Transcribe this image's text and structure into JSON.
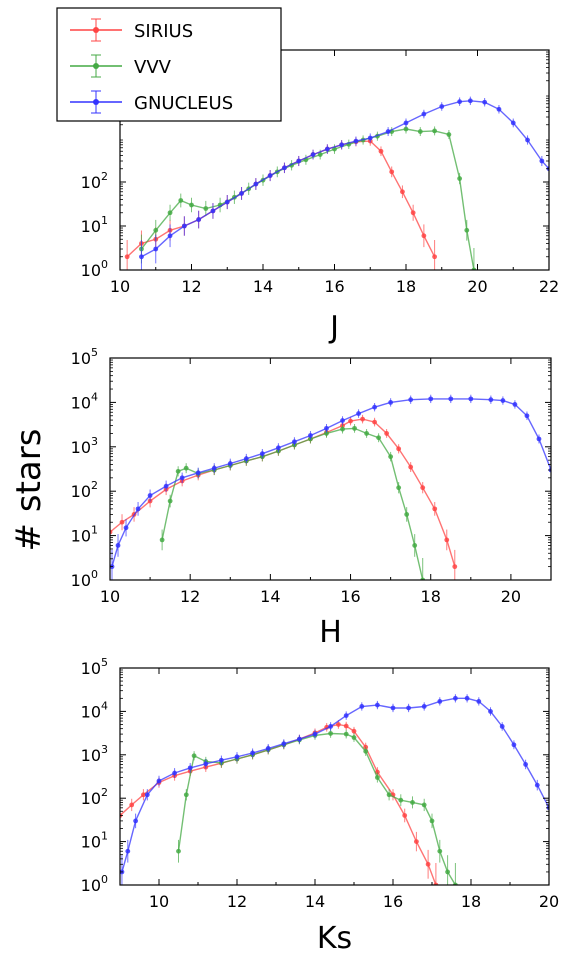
{
  "chart_data": [
    {
      "type": "line",
      "xlabel": "J",
      "xlim": [
        10,
        22
      ],
      "ylim": [
        1,
        100000
      ],
      "log_y": true,
      "x_ticks": [
        "10",
        "12",
        "14",
        "16",
        "18",
        "20",
        "22"
      ],
      "y_ticks": [
        {
          "base": "10",
          "exp": "0"
        },
        {
          "base": "10",
          "exp": "1"
        },
        {
          "base": "10",
          "exp": "2"
        }
      ],
      "legend": {
        "placement": "top-left",
        "entries": [
          "SIRIUS",
          "VVV",
          "GNUCLEUS"
        ]
      },
      "series": [
        {
          "name": "SIRIUS",
          "color": "#ff4444",
          "x": [
            10.2,
            10.6,
            11.0,
            11.4,
            11.8,
            12.2,
            12.6,
            13.0,
            13.4,
            13.8,
            14.2,
            14.6,
            15.0,
            15.4,
            15.8,
            16.2,
            16.6,
            17.0,
            17.3,
            17.6,
            17.9,
            18.2,
            18.5,
            18.8
          ],
          "y": [
            2,
            4,
            5,
            8,
            10,
            14,
            22,
            35,
            55,
            90,
            140,
            210,
            300,
            420,
            560,
            700,
            820,
            850,
            500,
            170,
            60,
            20,
            6,
            2
          ]
        },
        {
          "name": "VVV",
          "color": "#44aa44",
          "x": [
            10.6,
            11.0,
            11.4,
            11.7,
            12.0,
            12.4,
            12.8,
            13.2,
            13.6,
            14.0,
            14.4,
            14.8,
            15.2,
            15.6,
            16.0,
            16.4,
            16.8,
            17.2,
            17.6,
            18.0,
            18.4,
            18.8,
            19.2,
            19.5,
            19.7,
            19.9
          ],
          "y": [
            3,
            8,
            20,
            38,
            30,
            25,
            30,
            45,
            70,
            110,
            170,
            240,
            320,
            420,
            560,
            720,
            900,
            1100,
            1400,
            1600,
            1400,
            1450,
            1200,
            120,
            8,
            1
          ]
        },
        {
          "name": "GNUCLEUS",
          "color": "#3333ff",
          "x": [
            10.6,
            11.0,
            11.4,
            11.8,
            12.2,
            12.6,
            13.0,
            13.4,
            13.8,
            14.2,
            14.6,
            15.0,
            15.4,
            15.8,
            16.2,
            16.6,
            17.0,
            17.5,
            18.0,
            18.5,
            19.0,
            19.5,
            19.8,
            20.2,
            20.6,
            21.0,
            21.4,
            21.8,
            22.0
          ],
          "y": [
            2,
            3,
            6,
            10,
            14,
            22,
            35,
            55,
            90,
            140,
            210,
            300,
            420,
            560,
            700,
            850,
            1000,
            1400,
            2200,
            3500,
            5200,
            6700,
            7000,
            6500,
            4500,
            2200,
            900,
            300,
            200
          ]
        }
      ]
    },
    {
      "type": "line",
      "xlabel": "H",
      "xlim": [
        10,
        21
      ],
      "ylim": [
        1,
        100000
      ],
      "log_y": true,
      "x_ticks": [
        "10",
        "12",
        "14",
        "16",
        "18",
        "20"
      ],
      "y_ticks": [
        {
          "base": "10",
          "exp": "0"
        },
        {
          "base": "10",
          "exp": "1"
        },
        {
          "base": "10",
          "exp": "2"
        },
        {
          "base": "10",
          "exp": "3"
        },
        {
          "base": "10",
          "exp": "4"
        },
        {
          "base": "10",
          "exp": "5"
        }
      ],
      "series": [
        {
          "name": "SIRIUS",
          "color": "#ff4444",
          "x": [
            10.0,
            10.3,
            10.6,
            11.0,
            11.4,
            11.8,
            12.2,
            12.6,
            13.0,
            13.4,
            13.8,
            14.2,
            14.6,
            15.0,
            15.4,
            15.8,
            16.0,
            16.3,
            16.6,
            16.9,
            17.2,
            17.5,
            17.8,
            18.1,
            18.4,
            18.6
          ],
          "y": [
            12,
            20,
            30,
            60,
            110,
            170,
            230,
            300,
            380,
            480,
            600,
            800,
            1100,
            1500,
            2100,
            3000,
            3800,
            4200,
            3600,
            2000,
            900,
            350,
            120,
            40,
            8,
            2
          ]
        },
        {
          "name": "VVV",
          "color": "#44aa44",
          "x": [
            11.3,
            11.5,
            11.7,
            11.9,
            12.2,
            12.6,
            13.0,
            13.4,
            13.8,
            14.2,
            14.6,
            15.0,
            15.4,
            15.8,
            16.1,
            16.4,
            16.7,
            17.0,
            17.2,
            17.4,
            17.6,
            17.8
          ],
          "y": [
            8,
            60,
            280,
            330,
            250,
            300,
            380,
            480,
            600,
            800,
            1100,
            1500,
            2000,
            2500,
            2600,
            2000,
            1600,
            600,
            120,
            30,
            6,
            1
          ]
        },
        {
          "name": "GNUCLEUS",
          "color": "#3333ff",
          "x": [
            10.05,
            10.2,
            10.4,
            10.7,
            11.0,
            11.4,
            11.8,
            12.2,
            12.6,
            13.0,
            13.4,
            13.8,
            14.2,
            14.6,
            15.0,
            15.4,
            15.8,
            16.2,
            16.6,
            17.0,
            17.5,
            18.0,
            18.5,
            19.0,
            19.5,
            19.8,
            20.1,
            20.4,
            20.7,
            21.0
          ],
          "y": [
            2,
            6,
            15,
            40,
            80,
            130,
            200,
            260,
            330,
            420,
            540,
            700,
            950,
            1300,
            1800,
            2600,
            3900,
            5600,
            7800,
            10000,
            11500,
            12000,
            12000,
            12000,
            11500,
            11000,
            9000,
            5000,
            1500,
            300
          ]
        }
      ]
    },
    {
      "type": "line",
      "xlabel": "Ks",
      "xlim": [
        9,
        20
      ],
      "ylim": [
        1,
        100000
      ],
      "log_y": true,
      "x_ticks": [
        "10",
        "12",
        "14",
        "16",
        "18",
        "20"
      ],
      "y_ticks": [
        {
          "base": "10",
          "exp": "0"
        },
        {
          "base": "10",
          "exp": "1"
        },
        {
          "base": "10",
          "exp": "2"
        },
        {
          "base": "10",
          "exp": "3"
        },
        {
          "base": "10",
          "exp": "4"
        },
        {
          "base": "10",
          "exp": "5"
        }
      ],
      "series": [
        {
          "name": "SIRIUS",
          "color": "#ff4444",
          "x": [
            9.0,
            9.3,
            9.6,
            10.0,
            10.4,
            10.8,
            11.2,
            11.6,
            12.0,
            12.4,
            12.8,
            13.2,
            13.6,
            14.0,
            14.3,
            14.6,
            14.8,
            15.0,
            15.3,
            15.6,
            16.0,
            16.3,
            16.6,
            16.9,
            17.1
          ],
          "y": [
            40,
            70,
            120,
            230,
            330,
            420,
            520,
            640,
            800,
            1000,
            1300,
            1700,
            2300,
            3200,
            4300,
            5000,
            4600,
            3500,
            1500,
            400,
            120,
            40,
            10,
            3,
            1
          ]
        },
        {
          "name": "VVV",
          "color": "#44aa44",
          "x": [
            10.5,
            10.7,
            10.9,
            11.2,
            11.6,
            12.0,
            12.4,
            12.8,
            13.2,
            13.6,
            14.0,
            14.4,
            14.8,
            15.0,
            15.3,
            15.6,
            15.9,
            16.2,
            16.5,
            16.8,
            17.0,
            17.2,
            17.4,
            17.6
          ],
          "y": [
            6,
            120,
            950,
            700,
            650,
            800,
            1000,
            1300,
            1700,
            2200,
            2800,
            3100,
            3000,
            2500,
            1200,
            300,
            120,
            90,
            80,
            70,
            30,
            6,
            2,
            1
          ]
        },
        {
          "name": "GNUCLEUS",
          "color": "#3333ff",
          "x": [
            9.05,
            9.2,
            9.4,
            9.7,
            10.0,
            10.4,
            10.8,
            11.2,
            11.6,
            12.0,
            12.4,
            12.8,
            13.2,
            13.6,
            14.0,
            14.4,
            14.8,
            15.2,
            15.6,
            16.0,
            16.4,
            16.8,
            17.2,
            17.6,
            17.9,
            18.2,
            18.5,
            18.8,
            19.1,
            19.4,
            19.7,
            20.0
          ],
          "y": [
            2,
            6,
            30,
            120,
            250,
            380,
            500,
            620,
            750,
            900,
            1100,
            1400,
            1800,
            2300,
            3000,
            4500,
            8000,
            13000,
            14000,
            12000,
            12000,
            13000,
            17000,
            20000,
            20000,
            17000,
            10000,
            4500,
            1700,
            600,
            200,
            60
          ]
        }
      ]
    }
  ],
  "shared_ylabel": "# stars"
}
